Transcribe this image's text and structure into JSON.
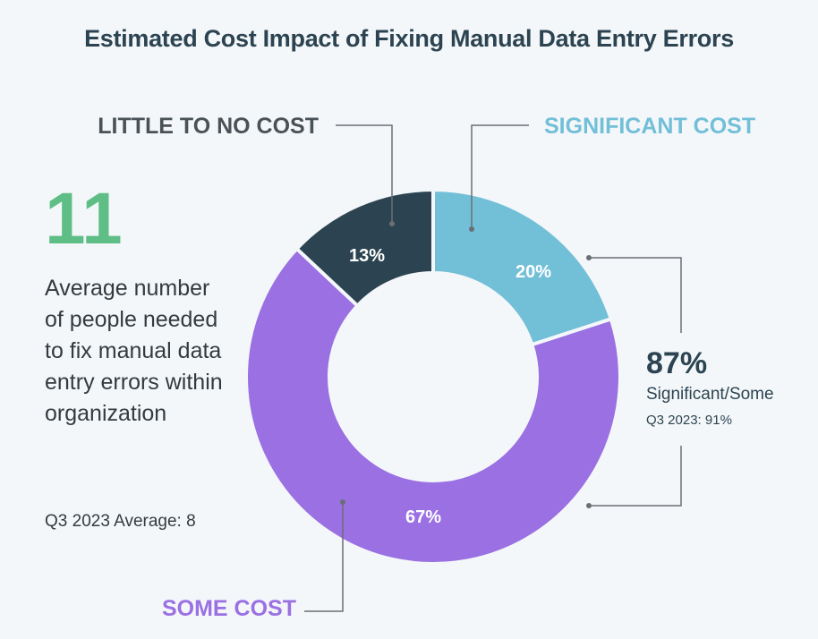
{
  "title": "Estimated Cost Impact of Fixing Manual Data Entry Errors",
  "stat": {
    "value": "11",
    "description": "Average number of people needed to fix manual data entry errors within organization",
    "note": "Q3 2023 Average: 8"
  },
  "summary": {
    "value": "87%",
    "label": "Significant/Some",
    "note": "Q3 2023: 91%"
  },
  "colors": {
    "significant": "#72bfd8",
    "some": "#9a70e3",
    "little": "#2c4451",
    "accent_green": "#5fbe86",
    "connector": "#6b6f73"
  },
  "chart_data": {
    "type": "pie",
    "title": "Estimated Cost Impact of Fixing Manual Data Entry Errors",
    "donut": true,
    "slices": [
      {
        "label": "SIGNIFICANT COST",
        "value": 20,
        "display": "20%",
        "color": "#72bfd8"
      },
      {
        "label": "SOME COST",
        "value": 67,
        "display": "67%",
        "color": "#9a70e3"
      },
      {
        "label": "LITTLE TO NO COST",
        "value": 13,
        "display": "13%",
        "color": "#2c4451"
      }
    ]
  }
}
